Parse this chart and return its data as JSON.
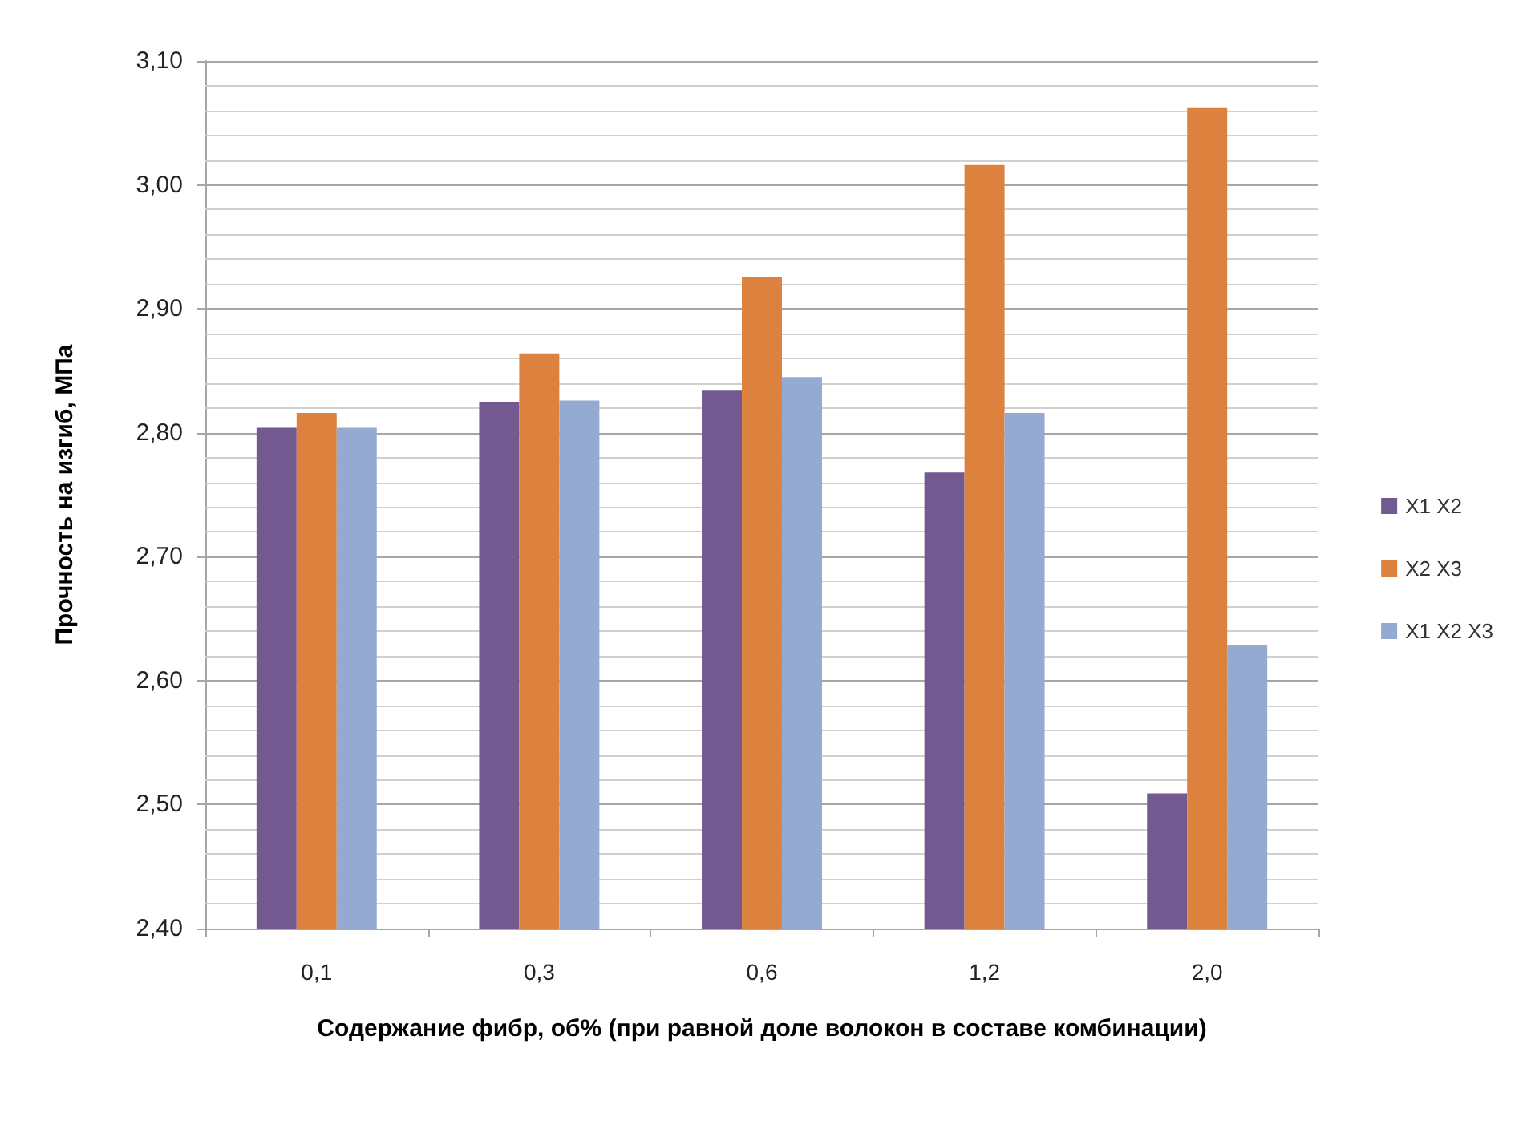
{
  "chart_data": {
    "type": "bar",
    "xlabel": "Содержание фибр, об% (при равной доле волокон в составе комбинации)",
    "ylabel": "Прочность на изгиб, МПа",
    "categories": [
      "0,1",
      "0,3",
      "0,6",
      "1,2",
      "2,0"
    ],
    "series": [
      {
        "name": "X1 X2",
        "color": "#725990",
        "values": [
          2.804,
          2.825,
          2.834,
          2.768,
          2.509
        ]
      },
      {
        "name": "X2 X3",
        "color": "#dc823e",
        "values": [
          2.816,
          2.864,
          2.926,
          3.016,
          3.062
        ]
      },
      {
        "name": "X1 X2 X3",
        "color": "#95aad1",
        "values": [
          2.804,
          2.826,
          2.845,
          2.816,
          2.629
        ]
      }
    ],
    "ylim": [
      2.4,
      3.1
    ],
    "yticks": [
      {
        "value": 2.4,
        "label": "2,40"
      },
      {
        "value": 2.42,
        "label": null
      },
      {
        "value": 2.44,
        "label": null
      },
      {
        "value": 2.46,
        "label": null
      },
      {
        "value": 2.48,
        "label": null
      },
      {
        "value": 2.5,
        "label": "2,50"
      },
      {
        "value": 2.52,
        "label": null
      },
      {
        "value": 2.54,
        "label": null
      },
      {
        "value": 2.56,
        "label": null
      },
      {
        "value": 2.58,
        "label": null
      },
      {
        "value": 2.6,
        "label": "2,60"
      },
      {
        "value": 2.62,
        "label": null
      },
      {
        "value": 2.64,
        "label": null
      },
      {
        "value": 2.66,
        "label": null
      },
      {
        "value": 2.68,
        "label": null
      },
      {
        "value": 2.7,
        "label": "2,70"
      },
      {
        "value": 2.72,
        "label": null
      },
      {
        "value": 2.74,
        "label": null
      },
      {
        "value": 2.76,
        "label": null
      },
      {
        "value": 2.78,
        "label": null
      },
      {
        "value": 2.8,
        "label": "2,80"
      },
      {
        "value": 2.82,
        "label": null
      },
      {
        "value": 2.84,
        "label": null
      },
      {
        "value": 2.86,
        "label": null
      },
      {
        "value": 2.88,
        "label": null
      },
      {
        "value": 2.9,
        "label": "2,90"
      },
      {
        "value": 2.92,
        "label": null
      },
      {
        "value": 2.94,
        "label": null
      },
      {
        "value": 2.96,
        "label": null
      },
      {
        "value": 2.98,
        "label": null
      },
      {
        "value": 3.0,
        "label": "3,00"
      },
      {
        "value": 3.02,
        "label": null
      },
      {
        "value": 3.04,
        "label": null
      },
      {
        "value": 3.06,
        "label": null
      },
      {
        "value": 3.08,
        "label": null
      },
      {
        "value": 3.1,
        "label": "3,10"
      }
    ],
    "grid": true,
    "legend": "right"
  }
}
